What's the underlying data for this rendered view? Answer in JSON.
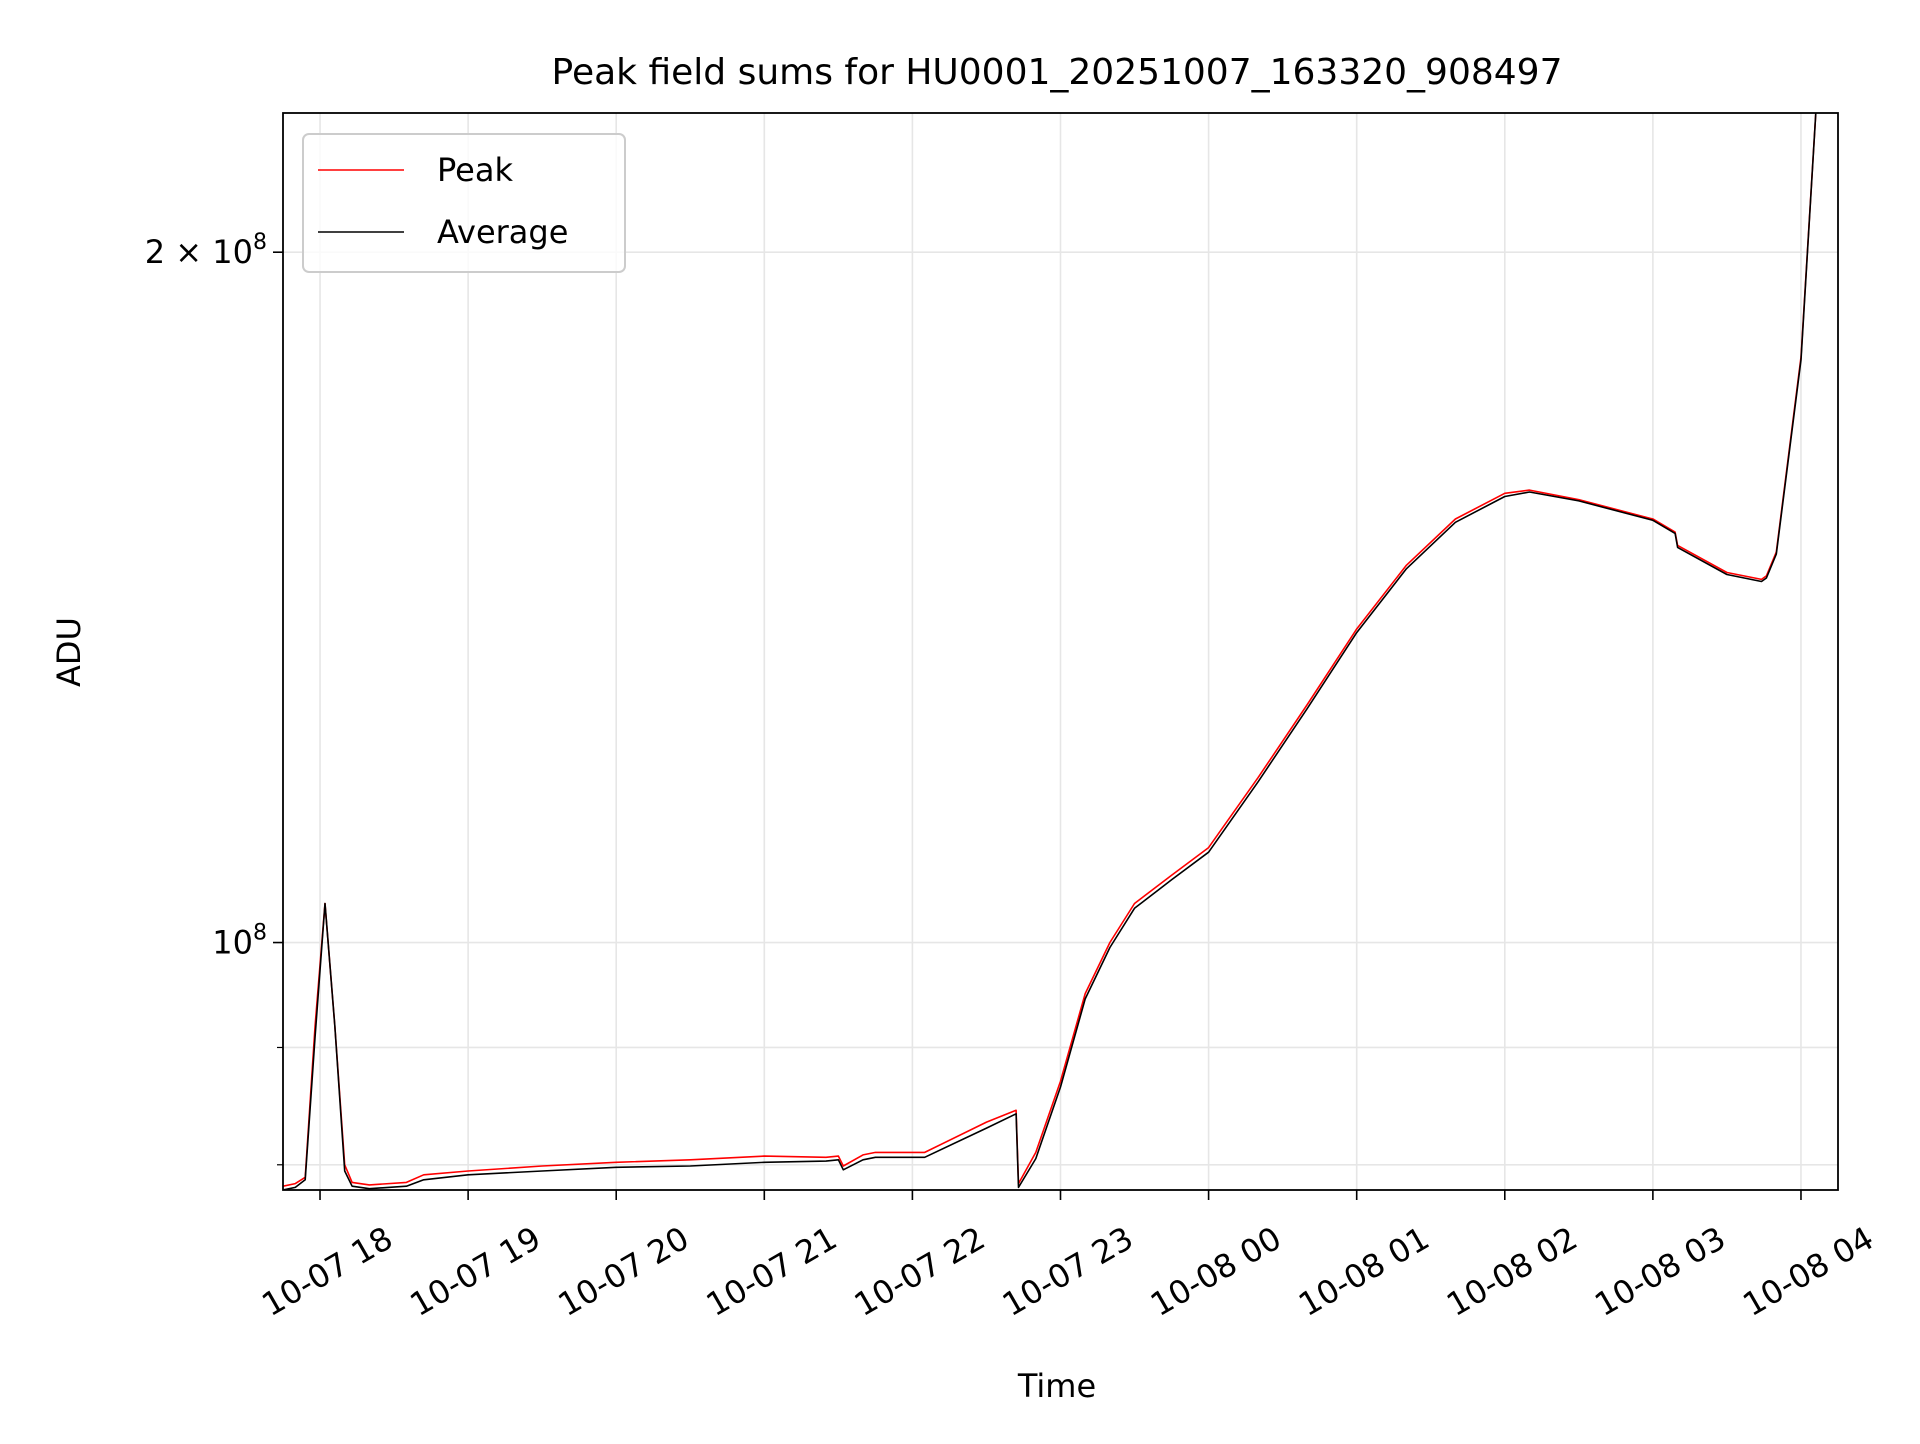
{
  "chart_data": {
    "type": "line",
    "title": "Peak field sums for HU0001_20251007_163320_908497",
    "xlabel": "Time",
    "ylabel": "ADU",
    "y_scale": "log",
    "grid": true,
    "legend_position": "top-left",
    "xlim": [
      "2025-10-07 17:45",
      "2025-10-08 04:15"
    ],
    "ylim": [
      78000000,
      230000000
    ],
    "x_ticks": [
      {
        "t": "2025-10-07 18:00",
        "label": "10-07 18"
      },
      {
        "t": "2025-10-07 19:00",
        "label": "10-07 19"
      },
      {
        "t": "2025-10-07 20:00",
        "label": "10-07 20"
      },
      {
        "t": "2025-10-07 21:00",
        "label": "10-07 21"
      },
      {
        "t": "2025-10-07 22:00",
        "label": "10-07 22"
      },
      {
        "t": "2025-10-07 23:00",
        "label": "10-07 23"
      },
      {
        "t": "2025-10-08 00:00",
        "label": "10-08 00"
      },
      {
        "t": "2025-10-08 01:00",
        "label": "10-08 01"
      },
      {
        "t": "2025-10-08 02:00",
        "label": "10-08 02"
      },
      {
        "t": "2025-10-08 03:00",
        "label": "10-08 03"
      },
      {
        "t": "2025-10-08 04:00",
        "label": "10-08 04"
      }
    ],
    "y_major_ticks": [
      {
        "value": 100000000,
        "base": "10",
        "exp": "8"
      },
      {
        "value": 200000000,
        "base": "2 × 10",
        "exp": "8"
      }
    ],
    "y_minor_ticks": [
      80000000,
      90000000
    ],
    "series": [
      {
        "name": "Peak",
        "color": "#ff0000",
        "x": [
          "2025-10-07 17:45",
          "2025-10-07 17:50",
          "2025-10-07 17:54",
          "2025-10-07 17:58",
          "2025-10-07 18:02",
          "2025-10-07 18:06",
          "2025-10-07 18:10",
          "2025-10-07 18:13",
          "2025-10-07 18:20",
          "2025-10-07 18:35",
          "2025-10-07 18:42",
          "2025-10-07 19:00",
          "2025-10-07 19:30",
          "2025-10-07 20:00",
          "2025-10-07 20:30",
          "2025-10-07 21:00",
          "2025-10-07 21:25",
          "2025-10-07 21:30",
          "2025-10-07 21:32",
          "2025-10-07 21:40",
          "2025-10-07 21:45",
          "2025-10-07 22:05",
          "2025-10-07 22:30",
          "2025-10-07 22:42",
          "2025-10-07 22:43",
          "2025-10-07 22:50",
          "2025-10-07 23:00",
          "2025-10-07 23:10",
          "2025-10-07 23:20",
          "2025-10-07 23:30",
          "2025-10-07 23:45",
          "2025-10-08 00:00",
          "2025-10-08 00:20",
          "2025-10-08 00:40",
          "2025-10-08 01:00",
          "2025-10-08 01:20",
          "2025-10-08 01:40",
          "2025-10-08 02:00",
          "2025-10-08 02:10",
          "2025-10-08 02:30",
          "2025-10-08 03:00",
          "2025-10-08 03:09",
          "2025-10-08 03:10",
          "2025-10-08 03:30",
          "2025-10-08 03:44",
          "2025-10-08 03:46",
          "2025-10-08 03:50",
          "2025-10-08 04:00",
          "2025-10-08 04:06"
        ],
        "y": [
          78300000,
          78500000,
          79000000,
          92000000,
          104000000,
          92000000,
          80000000,
          78600000,
          78400000,
          78600000,
          79200000,
          79500000,
          79900000,
          80200000,
          80400000,
          80700000,
          80600000,
          80700000,
          79900000,
          80800000,
          81000000,
          81000000,
          83500000,
          84500000,
          78500000,
          81000000,
          87000000,
          95000000,
          100000000,
          104000000,
          107000000,
          110000000,
          118000000,
          127000000,
          137000000,
          146000000,
          153000000,
          157000000,
          157500000,
          156000000,
          153000000,
          151000000,
          149000000,
          145000000,
          144000000,
          144500000,
          148000000,
          180000000,
          230000000
        ]
      },
      {
        "name": "Average",
        "color": "#000000",
        "x": [
          "2025-10-07 17:45",
          "2025-10-07 17:50",
          "2025-10-07 17:54",
          "2025-10-07 17:58",
          "2025-10-07 18:02",
          "2025-10-07 18:06",
          "2025-10-07 18:10",
          "2025-10-07 18:13",
          "2025-10-07 18:20",
          "2025-10-07 18:35",
          "2025-10-07 18:42",
          "2025-10-07 19:00",
          "2025-10-07 19:30",
          "2025-10-07 20:00",
          "2025-10-07 20:30",
          "2025-10-07 21:00",
          "2025-10-07 21:25",
          "2025-10-07 21:30",
          "2025-10-07 21:32",
          "2025-10-07 21:40",
          "2025-10-07 21:45",
          "2025-10-07 22:05",
          "2025-10-07 22:30",
          "2025-10-07 22:42",
          "2025-10-07 22:43",
          "2025-10-07 22:50",
          "2025-10-07 23:00",
          "2025-10-07 23:10",
          "2025-10-07 23:20",
          "2025-10-07 23:30",
          "2025-10-07 23:45",
          "2025-10-08 00:00",
          "2025-10-08 00:20",
          "2025-10-08 00:40",
          "2025-10-08 01:00",
          "2025-10-08 01:20",
          "2025-10-08 01:40",
          "2025-10-08 02:00",
          "2025-10-08 02:10",
          "2025-10-08 02:30",
          "2025-10-08 03:00",
          "2025-10-08 03:09",
          "2025-10-08 03:10",
          "2025-10-08 03:30",
          "2025-10-08 03:44",
          "2025-10-08 03:46",
          "2025-10-08 03:50",
          "2025-10-08 04:00",
          "2025-10-08 04:06"
        ],
        "y": [
          78000000,
          78200000,
          78800000,
          91000000,
          104000000,
          92000000,
          79500000,
          78300000,
          78100000,
          78300000,
          78800000,
          79200000,
          79500000,
          79800000,
          79900000,
          80200000,
          80300000,
          80400000,
          79600000,
          80400000,
          80600000,
          80600000,
          83000000,
          84200000,
          78200000,
          80500000,
          86500000,
          94500000,
          99500000,
          103500000,
          106500000,
          109500000,
          117500000,
          126500000,
          136500000,
          145500000,
          152500000,
          156500000,
          157200000,
          155800000,
          152800000,
          150800000,
          148700000,
          144700000,
          143700000,
          144200000,
          147700000,
          179500000,
          230000000
        ]
      }
    ]
  }
}
